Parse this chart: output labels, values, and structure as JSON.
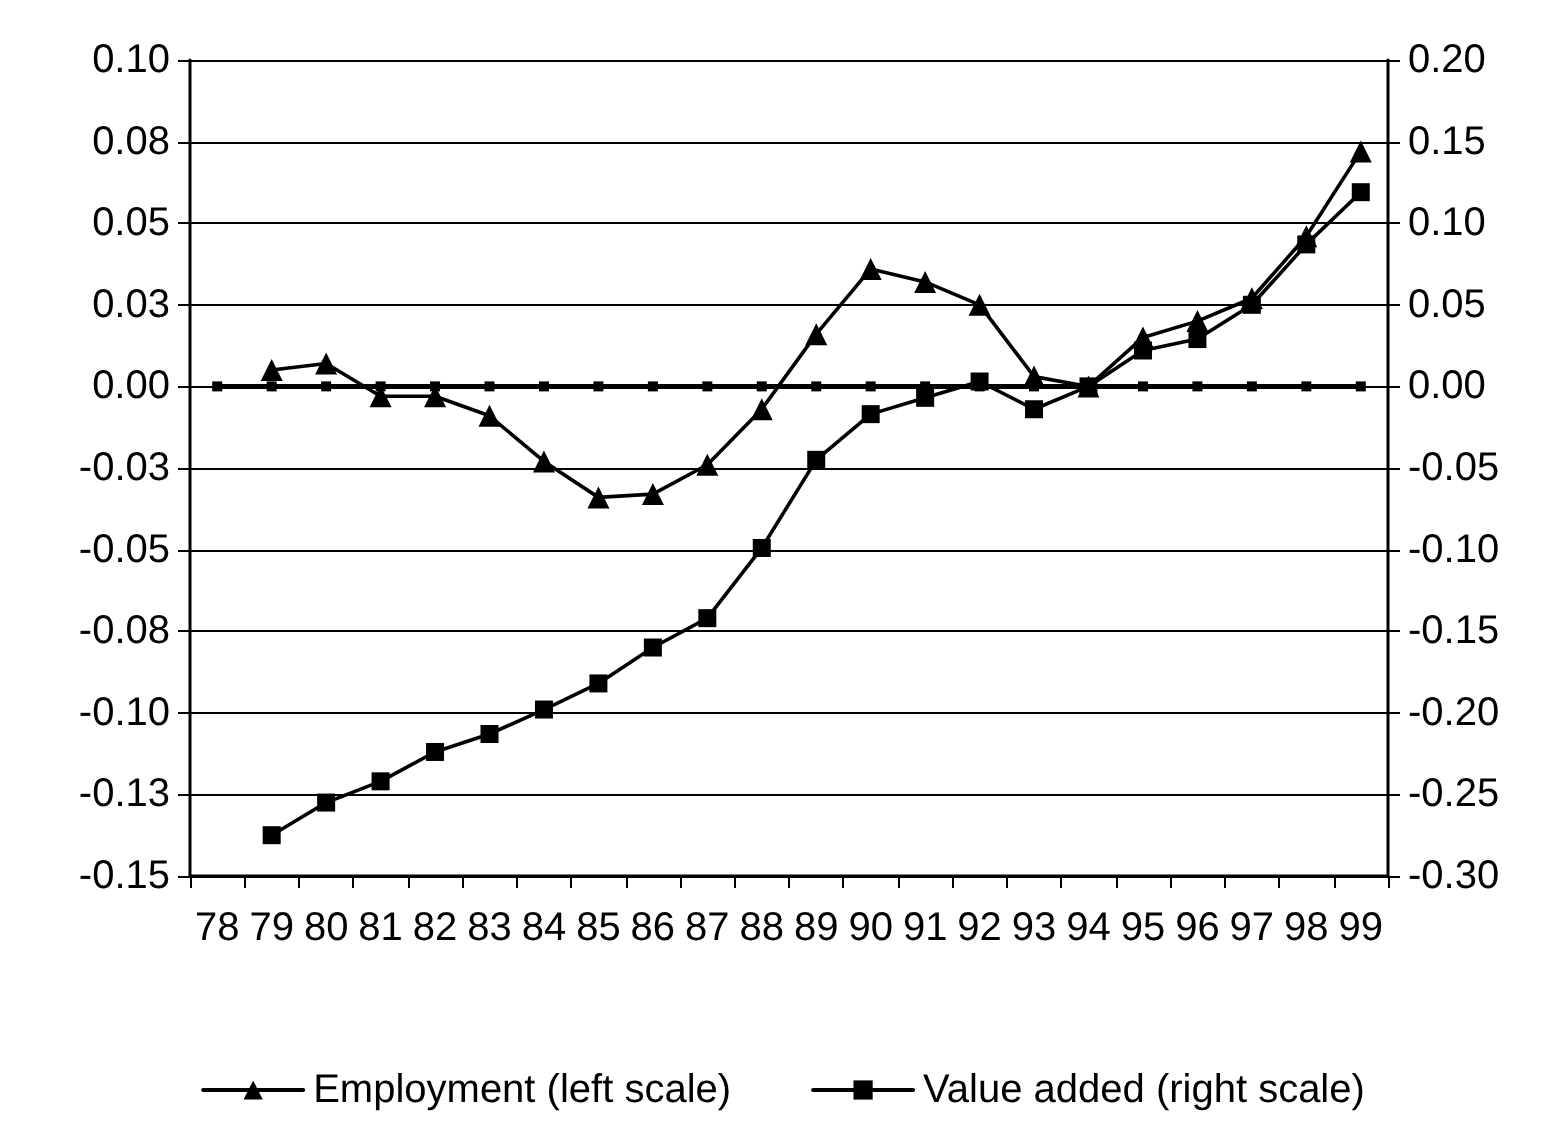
{
  "chart_data": {
    "type": "line",
    "categories": [
      "78",
      "79",
      "80",
      "81",
      "82",
      "83",
      "84",
      "85",
      "86",
      "87",
      "88",
      "89",
      "90",
      "91",
      "92",
      "93",
      "94",
      "95",
      "96",
      "97",
      "98",
      "99"
    ],
    "series": [
      {
        "name": "Employment (left scale)",
        "color": "#000000",
        "marker": "triangle",
        "values": [
          null,
          0.005,
          0.007,
          -0.003,
          -0.003,
          -0.009,
          -0.023,
          -0.034,
          -0.033,
          -0.024,
          -0.007,
          0.016,
          0.036,
          0.032,
          0.025,
          0.003,
          0,
          0.015,
          0.02,
          0.027,
          0.046,
          0.072
        ]
      },
      {
        "name": "Value added (right scale)",
        "color": "#000000",
        "marker": "square",
        "axis": "y2",
        "values": [
          null,
          -0.275,
          -0.255,
          -0.242,
          -0.224,
          -0.213,
          -0.198,
          -0.182,
          -0.16,
          -0.142,
          -0.099,
          -0.045,
          -0.017,
          -0.007,
          0.003,
          -0.014,
          0,
          0.022,
          0.029,
          0.05,
          0.087,
          0.119
        ]
      },
      {
        "color": "#000000",
        "marker": "square",
        "values": [
          0,
          0,
          0,
          0,
          0,
          0,
          0,
          0,
          0,
          0,
          0,
          0,
          0,
          0,
          0,
          0,
          0,
          0,
          0,
          0,
          0,
          0
        ]
      }
    ],
    "ylim": [
      -0.15,
      0.1
    ],
    "yticks": [
      {
        "value": -0.15,
        "label": "-0.15"
      },
      {
        "value": -0.125,
        "label": "-0.13"
      },
      {
        "value": -0.1,
        "label": "-0.10"
      },
      {
        "value": -0.075,
        "label": "-0.08"
      },
      {
        "value": -0.05,
        "label": "-0.05"
      },
      {
        "value": -0.025,
        "label": "-0.03"
      },
      {
        "value": 0,
        "label": "0.00"
      },
      {
        "value": 0.025,
        "label": "0.03"
      },
      {
        "value": 0.05,
        "label": "0.05"
      },
      {
        "value": 0.075,
        "label": "0.08"
      },
      {
        "value": 0.1,
        "label": "0.10"
      }
    ],
    "y2lim": [
      -0.3,
      0.2
    ],
    "y2ticks": [
      {
        "value": -0.3,
        "label": "-0.30"
      },
      {
        "value": -0.25,
        "label": "-0.25"
      },
      {
        "value": -0.2,
        "label": "-0.20"
      },
      {
        "value": -0.15,
        "label": "-0.15"
      },
      {
        "value": -0.1,
        "label": "-0.10"
      },
      {
        "value": -0.05,
        "label": "-0.05"
      },
      {
        "value": 0,
        "label": "0.00"
      },
      {
        "value": 0.05,
        "label": "0.05"
      },
      {
        "value": 0.1,
        "label": "0.10"
      },
      {
        "value": 0.15,
        "label": "0.15"
      },
      {
        "value": 0.2,
        "label": "0.20"
      }
    ],
    "grid": "y",
    "legend": "bottom",
    "line_style": "solid"
  }
}
